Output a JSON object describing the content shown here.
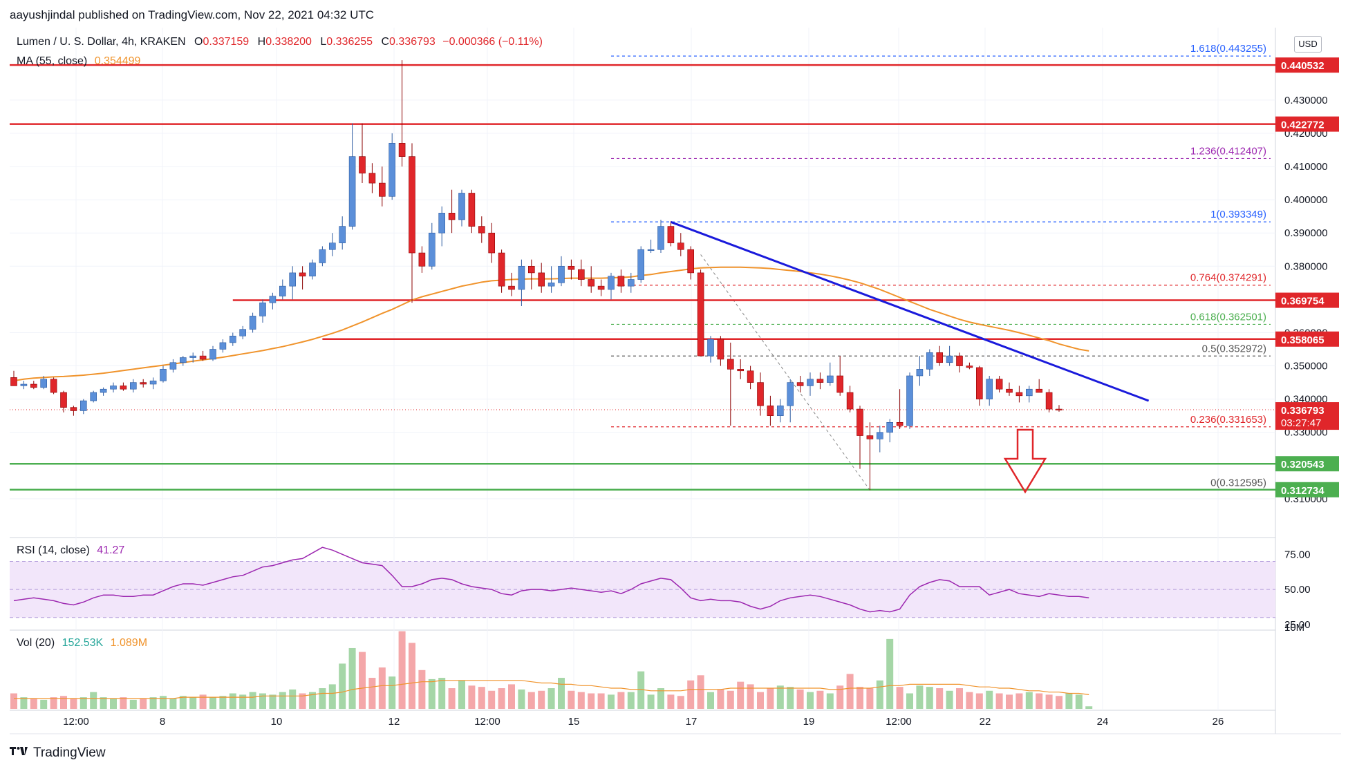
{
  "header": {
    "publisher_line": "aayushjindal published on TradingView.com, Nov 22, 2021 04:32 UTC"
  },
  "footer": {
    "brand": "TradingView",
    "logo": "tradingview-logo-icon"
  },
  "legend": {
    "symbol": "Lumen / U. S. Dollar, 4h, KRAKEN",
    "open_label": "O",
    "open": "0.337159",
    "high_label": "H",
    "high": "0.338200",
    "low_label": "L",
    "low": "0.336255",
    "close_label": "C",
    "close": "0.336793",
    "change": "−0.000366 (−0.11%)",
    "ma_label": "MA (55, close)",
    "ma_value": "0.354499",
    "rsi_label": "RSI (14, close)",
    "rsi_value": "41.27",
    "vol_label": "Vol (20)",
    "vol_value": "152.53K",
    "vol_ma_value": "1.089M"
  },
  "currency_button": "USD",
  "colors": {
    "up": "#5b8fd9",
    "down": "#e0262a",
    "ma": "#f0932b",
    "trendline": "#1a1adb",
    "resistance": "#e0262a",
    "support": "#4caf50",
    "rsi_line": "#9c27b0",
    "rsi_band": "#f2e6fa",
    "fib_blue": "#2962ff",
    "fib_red": "#e0262a",
    "fib_green": "#4caf50",
    "fib_purple": "#9c27b0",
    "arrow": "#e0262a"
  },
  "chart_data": {
    "type": "candlestick",
    "timeframe": "4h",
    "y_ticks": [
      "0.310000",
      "0.330000",
      "0.340000",
      "0.350000",
      "0.360000",
      "0.380000",
      "0.390000",
      "0.400000",
      "0.410000",
      "0.420000",
      "0.430000"
    ],
    "x_ticks": [
      "12:00",
      "8",
      "10",
      "12",
      "12:00",
      "15",
      "17",
      "19",
      "12:00",
      "22",
      "24",
      "26"
    ],
    "price_badges": [
      {
        "label": "0.440532",
        "color": "#e0262a"
      },
      {
        "label": "0.422772",
        "color": "#e0262a"
      },
      {
        "label": "0.369754",
        "color": "#e0262a"
      },
      {
        "label": "0.358065",
        "color": "#e0262a"
      },
      {
        "label": "0.336793",
        "sublabel": "03:27:47",
        "color": "#e0262a"
      },
      {
        "label": "0.320543",
        "color": "#4caf50"
      },
      {
        "label": "0.312734",
        "color": "#4caf50"
      }
    ],
    "horizontal_levels": [
      {
        "value": 0.440532,
        "kind": "resistance"
      },
      {
        "value": 0.422772,
        "kind": "resistance"
      },
      {
        "value": 0.369754,
        "kind": "resistance"
      },
      {
        "value": 0.358065,
        "kind": "resistance"
      },
      {
        "value": 0.320543,
        "kind": "support"
      },
      {
        "value": 0.312734,
        "kind": "support"
      }
    ],
    "fibonacci": [
      {
        "ratio": "1.618",
        "value": 0.443255,
        "label": "1.618(0.443255)",
        "color": "#2962ff"
      },
      {
        "ratio": "1.236",
        "value": 0.412407,
        "label": "1.236(0.412407)",
        "color": "#9c27b0"
      },
      {
        "ratio": "1",
        "value": 0.393349,
        "label": "1(0.393349)",
        "color": "#2962ff"
      },
      {
        "ratio": "0.764",
        "value": 0.374291,
        "label": "0.764(0.374291)",
        "color": "#e0262a"
      },
      {
        "ratio": "0.618",
        "value": 0.362501,
        "label": "0.618(0.362501)",
        "color": "#4caf50"
      },
      {
        "ratio": "0.5",
        "value": 0.352972,
        "label": "0.5(0.352972)",
        "color": "#555555"
      },
      {
        "ratio": "0.236",
        "value": 0.331653,
        "label": "0.236(0.331653)",
        "color": "#e0262a"
      },
      {
        "ratio": "0",
        "value": 0.312595,
        "label": "0(0.312595)",
        "color": "#555555"
      }
    ],
    "candles": [
      [
        0.3465,
        0.3485,
        0.344,
        0.344
      ],
      [
        0.344,
        0.3455,
        0.343,
        0.3445
      ],
      [
        0.3445,
        0.3455,
        0.343,
        0.3435
      ],
      [
        0.3435,
        0.347,
        0.343,
        0.346
      ],
      [
        0.346,
        0.3465,
        0.3415,
        0.342
      ],
      [
        0.342,
        0.3425,
        0.336,
        0.3375
      ],
      [
        0.3375,
        0.338,
        0.335,
        0.3365
      ],
      [
        0.3365,
        0.34,
        0.3355,
        0.3395
      ],
      [
        0.3395,
        0.3425,
        0.339,
        0.342
      ],
      [
        0.342,
        0.3435,
        0.341,
        0.343
      ],
      [
        0.343,
        0.345,
        0.342,
        0.344
      ],
      [
        0.344,
        0.345,
        0.3425,
        0.343
      ],
      [
        0.343,
        0.346,
        0.342,
        0.345
      ],
      [
        0.345,
        0.346,
        0.3435,
        0.3445
      ],
      [
        0.3445,
        0.3465,
        0.343,
        0.3455
      ],
      [
        0.3455,
        0.35,
        0.345,
        0.349
      ],
      [
        0.349,
        0.352,
        0.348,
        0.351
      ],
      [
        0.351,
        0.353,
        0.35,
        0.3525
      ],
      [
        0.3525,
        0.354,
        0.351,
        0.353
      ],
      [
        0.353,
        0.3545,
        0.3515,
        0.352
      ],
      [
        0.352,
        0.356,
        0.3515,
        0.355
      ],
      [
        0.355,
        0.358,
        0.354,
        0.357
      ],
      [
        0.357,
        0.36,
        0.356,
        0.359
      ],
      [
        0.359,
        0.362,
        0.358,
        0.361
      ],
      [
        0.361,
        0.366,
        0.36,
        0.365
      ],
      [
        0.365,
        0.37,
        0.363,
        0.369
      ],
      [
        0.369,
        0.372,
        0.367,
        0.371
      ],
      [
        0.371,
        0.376,
        0.37,
        0.374
      ],
      [
        0.374,
        0.38,
        0.37,
        0.378
      ],
      [
        0.378,
        0.38,
        0.373,
        0.377
      ],
      [
        0.377,
        0.382,
        0.376,
        0.381
      ],
      [
        0.381,
        0.386,
        0.38,
        0.385
      ],
      [
        0.385,
        0.39,
        0.383,
        0.387
      ],
      [
        0.387,
        0.395,
        0.385,
        0.392
      ],
      [
        0.392,
        0.423,
        0.391,
        0.413
      ],
      [
        0.413,
        0.423,
        0.405,
        0.408
      ],
      [
        0.408,
        0.411,
        0.402,
        0.405
      ],
      [
        0.405,
        0.41,
        0.398,
        0.401
      ],
      [
        0.401,
        0.42,
        0.4,
        0.417
      ],
      [
        0.417,
        0.442,
        0.41,
        0.413
      ],
      [
        0.413,
        0.417,
        0.369,
        0.384
      ],
      [
        0.384,
        0.386,
        0.378,
        0.38
      ],
      [
        0.38,
        0.393,
        0.379,
        0.39
      ],
      [
        0.39,
        0.398,
        0.386,
        0.396
      ],
      [
        0.396,
        0.403,
        0.39,
        0.394
      ],
      [
        0.394,
        0.403,
        0.392,
        0.402
      ],
      [
        0.402,
        0.403,
        0.39,
        0.392
      ],
      [
        0.392,
        0.395,
        0.387,
        0.39
      ],
      [
        0.39,
        0.393,
        0.381,
        0.384
      ],
      [
        0.384,
        0.385,
        0.372,
        0.374
      ],
      [
        0.374,
        0.378,
        0.371,
        0.373
      ],
      [
        0.373,
        0.382,
        0.368,
        0.38
      ],
      [
        0.38,
        0.382,
        0.373,
        0.378
      ],
      [
        0.378,
        0.381,
        0.372,
        0.374
      ],
      [
        0.374,
        0.38,
        0.372,
        0.375
      ],
      [
        0.375,
        0.383,
        0.374,
        0.38
      ],
      [
        0.38,
        0.382,
        0.376,
        0.379
      ],
      [
        0.379,
        0.382,
        0.374,
        0.376
      ],
      [
        0.376,
        0.38,
        0.372,
        0.374
      ],
      [
        0.374,
        0.376,
        0.371,
        0.373
      ],
      [
        0.373,
        0.378,
        0.37,
        0.377
      ],
      [
        0.377,
        0.379,
        0.372,
        0.374
      ],
      [
        0.374,
        0.378,
        0.372,
        0.376
      ],
      [
        0.376,
        0.386,
        0.375,
        0.385
      ],
      [
        0.385,
        0.388,
        0.384,
        0.385
      ],
      [
        0.385,
        0.394,
        0.384,
        0.392
      ],
      [
        0.392,
        0.3935,
        0.386,
        0.387
      ],
      [
        0.387,
        0.39,
        0.383,
        0.385
      ],
      [
        0.385,
        0.386,
        0.376,
        0.378
      ],
      [
        0.378,
        0.379,
        0.354,
        0.353
      ],
      [
        0.353,
        0.359,
        0.351,
        0.358
      ],
      [
        0.358,
        0.359,
        0.35,
        0.352
      ],
      [
        0.352,
        0.357,
        0.332,
        0.349
      ],
      [
        0.349,
        0.352,
        0.346,
        0.3485
      ],
      [
        0.3485,
        0.35,
        0.343,
        0.345
      ],
      [
        0.345,
        0.348,
        0.335,
        0.338
      ],
      [
        0.338,
        0.341,
        0.332,
        0.335
      ],
      [
        0.335,
        0.34,
        0.333,
        0.338
      ],
      [
        0.338,
        0.346,
        0.333,
        0.345
      ],
      [
        0.345,
        0.347,
        0.342,
        0.344
      ],
      [
        0.344,
        0.348,
        0.341,
        0.346
      ],
      [
        0.346,
        0.348,
        0.343,
        0.345
      ],
      [
        0.345,
        0.351,
        0.344,
        0.347
      ],
      [
        0.347,
        0.353,
        0.341,
        0.342
      ],
      [
        0.342,
        0.344,
        0.336,
        0.337
      ],
      [
        0.337,
        0.338,
        0.319,
        0.329
      ],
      [
        0.329,
        0.333,
        0.3126,
        0.328
      ],
      [
        0.328,
        0.332,
        0.324,
        0.33
      ],
      [
        0.33,
        0.334,
        0.327,
        0.333
      ],
      [
        0.333,
        0.343,
        0.331,
        0.332
      ],
      [
        0.332,
        0.348,
        0.331,
        0.347
      ],
      [
        0.347,
        0.353,
        0.344,
        0.349
      ],
      [
        0.349,
        0.355,
        0.347,
        0.354
      ],
      [
        0.354,
        0.356,
        0.35,
        0.351
      ],
      [
        0.351,
        0.356,
        0.35,
        0.353
      ],
      [
        0.353,
        0.354,
        0.348,
        0.35
      ],
      [
        0.35,
        0.351,
        0.349,
        0.3495
      ],
      [
        0.3495,
        0.35,
        0.338,
        0.34
      ],
      [
        0.34,
        0.347,
        0.338,
        0.346
      ],
      [
        0.346,
        0.347,
        0.342,
        0.343
      ],
      [
        0.343,
        0.345,
        0.341,
        0.342
      ],
      [
        0.342,
        0.344,
        0.339,
        0.341
      ],
      [
        0.341,
        0.344,
        0.339,
        0.343
      ],
      [
        0.343,
        0.346,
        0.342,
        0.342
      ],
      [
        0.342,
        0.343,
        0.336,
        0.337
      ],
      [
        0.337,
        0.3382,
        0.3362,
        0.3368
      ]
    ],
    "ma55": [
      0.3455,
      0.346,
      0.3463,
      0.3465,
      0.3467,
      0.3468,
      0.347,
      0.3472,
      0.3475,
      0.3478,
      0.3482,
      0.3486,
      0.349,
      0.3494,
      0.3498,
      0.3502,
      0.3506,
      0.351,
      0.3514,
      0.3518,
      0.3522,
      0.3526,
      0.3531,
      0.3536,
      0.3541,
      0.3546,
      0.3552,
      0.3558,
      0.3565,
      0.3572,
      0.358,
      0.3589,
      0.3598,
      0.3608,
      0.362,
      0.3632,
      0.3645,
      0.3658,
      0.367,
      0.3684,
      0.3698,
      0.3708,
      0.3716,
      0.3724,
      0.3732,
      0.374,
      0.3746,
      0.3752,
      0.3756,
      0.3758,
      0.376,
      0.3761,
      0.3762,
      0.3762,
      0.3762,
      0.3763,
      0.3764,
      0.3764,
      0.3764,
      0.3764,
      0.3765,
      0.3766,
      0.3768,
      0.3772,
      0.3775,
      0.378,
      0.3784,
      0.3788,
      0.3792,
      0.3795,
      0.3796,
      0.3797,
      0.3797,
      0.3797,
      0.3796,
      0.3795,
      0.3793,
      0.379,
      0.3787,
      0.3784,
      0.378,
      0.3776,
      0.3771,
      0.3765,
      0.3758,
      0.375,
      0.374,
      0.373,
      0.3718,
      0.3706,
      0.3694,
      0.3682,
      0.367,
      0.366,
      0.365,
      0.364,
      0.3632,
      0.3625,
      0.3619,
      0.3613,
      0.3607,
      0.36,
      0.3592,
      0.3584,
      0.3576,
      0.3566,
      0.3558,
      0.355,
      0.3545
    ],
    "rsi": {
      "label": "RSI (14, close)",
      "value": "41.27",
      "y_ticks": [
        "75.00",
        "50.00",
        "25.00"
      ],
      "band": [
        30,
        70
      ],
      "values": [
        42,
        43,
        44,
        43,
        42,
        40,
        39,
        41,
        44,
        46,
        46,
        45,
        45,
        46,
        46,
        49,
        52,
        54,
        54,
        53,
        55,
        57,
        59,
        60,
        63,
        66,
        67,
        69,
        71,
        72,
        76,
        80,
        78,
        75,
        72,
        69,
        68,
        67,
        60,
        52,
        52,
        54,
        57,
        58,
        57,
        54,
        52,
        51,
        50,
        47,
        46,
        49,
        50,
        50,
        49,
        50,
        51,
        50,
        49,
        48,
        49,
        47,
        50,
        54,
        56,
        58,
        57,
        51,
        44,
        42,
        43,
        42,
        42,
        41,
        38,
        36,
        38,
        42,
        44,
        45,
        46,
        45,
        43,
        41,
        39,
        36,
        34,
        35,
        34,
        36,
        46,
        52,
        55,
        57,
        56,
        52,
        52,
        52,
        46,
        48,
        50,
        47,
        46,
        45,
        47,
        46,
        45,
        45,
        44
      ]
    },
    "volume": {
      "label": "Vol (20)",
      "value": "152.53K",
      "ma_value": "1.089M",
      "y_tick": "10M",
      "values_m": [
        1.2,
        0.9,
        0.8,
        0.7,
        0.9,
        1.0,
        0.8,
        0.9,
        1.3,
        0.9,
        0.8,
        0.9,
        0.7,
        0.8,
        0.9,
        1.0,
        0.8,
        1.0,
        0.9,
        1.1,
        0.9,
        1.0,
        1.2,
        1.1,
        1.3,
        1.2,
        1.1,
        1.3,
        1.5,
        1.2,
        1.3,
        1.6,
        1.9,
        3.5,
        4.7,
        4.4,
        2.4,
        3.2,
        2.5,
        6.0,
        5.1,
        3.0,
        2.3,
        2.4,
        1.6,
        2.2,
        1.8,
        1.7,
        1.4,
        1.6,
        1.9,
        1.5,
        1.3,
        1.4,
        1.6,
        2.4,
        1.4,
        1.3,
        1.2,
        1.2,
        1.1,
        1.3,
        1.3,
        2.9,
        1.1,
        1.6,
        1.1,
        1.0,
        2.2,
        2.6,
        1.3,
        1.5,
        1.4,
        2.1,
        1.9,
        1.3,
        1.6,
        1.8,
        1.7,
        1.5,
        1.3,
        1.4,
        1.2,
        1.8,
        2.7,
        1.7,
        1.6,
        2.2,
        5.4,
        1.7,
        1.2,
        1.8,
        1.7,
        1.6,
        1.4,
        1.6,
        1.3,
        1.2,
        1.4,
        1.2,
        1.1,
        1.2,
        1.3,
        1.2,
        1.1,
        1.0,
        1.2,
        1.1,
        0.2
      ],
      "ma_m": [
        0.8,
        0.8,
        0.8,
        0.8,
        0.8,
        0.8,
        0.8,
        0.8,
        0.8,
        0.8,
        0.8,
        0.8,
        0.8,
        0.8,
        0.8,
        0.8,
        0.8,
        0.9,
        0.9,
        0.9,
        0.9,
        0.9,
        0.9,
        0.9,
        0.9,
        1.0,
        1.0,
        1.0,
        1.0,
        1.0,
        1.1,
        1.2,
        1.2,
        1.3,
        1.5,
        1.6,
        1.7,
        1.8,
        1.8,
        1.9,
        2.0,
        2.1,
        2.1,
        2.2,
        2.2,
        2.2,
        2.2,
        2.2,
        2.2,
        2.2,
        2.2,
        2.2,
        2.1,
        2.0,
        2.0,
        1.9,
        1.9,
        1.8,
        1.8,
        1.7,
        1.6,
        1.6,
        1.5,
        1.5,
        1.4,
        1.4,
        1.4,
        1.4,
        1.5,
        1.5,
        1.5,
        1.5,
        1.6,
        1.6,
        1.6,
        1.6,
        1.6,
        1.6,
        1.6,
        1.6,
        1.6,
        1.6,
        1.5,
        1.5,
        1.6,
        1.6,
        1.6,
        1.7,
        1.8,
        1.8,
        1.9,
        1.9,
        1.9,
        1.9,
        1.9,
        1.9,
        1.8,
        1.7,
        1.7,
        1.6,
        1.6,
        1.5,
        1.4,
        1.4,
        1.3,
        1.3,
        1.2,
        1.2,
        1.1
      ]
    },
    "trendline": {
      "from": [
        66,
        0.3933
      ],
      "to": [
        114,
        0.3395
      ]
    },
    "fib_diagonal": {
      "from": [
        69,
        0.3835
      ],
      "to": [
        86,
        0.3126
      ]
    }
  }
}
